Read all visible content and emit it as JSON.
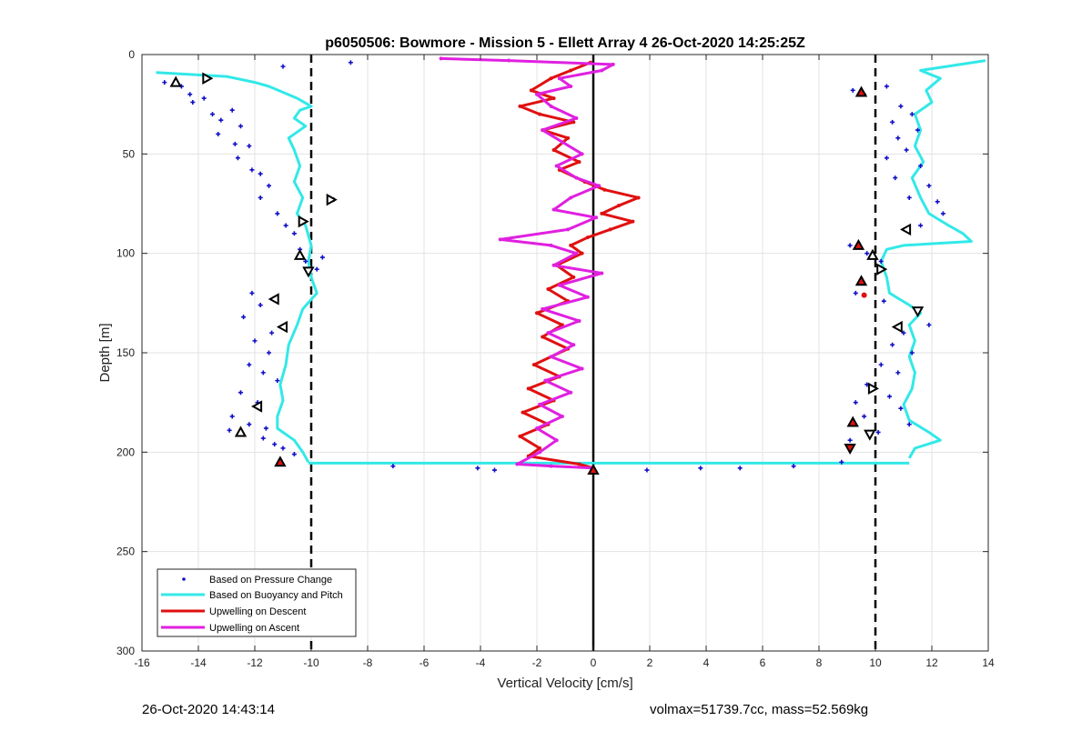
{
  "chart_data": {
    "type": "line",
    "title": "p6050506: Bowmore - Mission 5 - Ellett Array 4 26-Oct-2020 14:25:25Z",
    "xlabel": "Vertical Velocity [cm/s]",
    "ylabel": "Depth [m]",
    "xlim": [
      -16,
      14
    ],
    "ylim": [
      0,
      300
    ],
    "y_reversed": true,
    "xticks": [
      "-16",
      "-14",
      "-12",
      "-10",
      "-8",
      "-6",
      "-4",
      "-2",
      "0",
      "2",
      "4",
      "6",
      "8",
      "10",
      "12",
      "14"
    ],
    "yticks": [
      "0",
      "50",
      "100",
      "150",
      "200",
      "250",
      "300"
    ],
    "grid": true,
    "legend_position": "bottom-left",
    "reference_lines": [
      {
        "x": -10,
        "style": "dashed",
        "color": "#000000"
      },
      {
        "x": 10,
        "style": "dashed",
        "color": "#000000"
      },
      {
        "x": 0,
        "style": "solid",
        "color": "#000000"
      }
    ],
    "series": [
      {
        "name": "Based on Pressure Change",
        "style": "markers",
        "color": "#1010c8",
        "points": [
          [
            -15.2,
            14
          ],
          [
            -14.6,
            16
          ],
          [
            -14.3,
            20
          ],
          [
            -14.2,
            24
          ],
          [
            -13.8,
            22
          ],
          [
            -13.5,
            30
          ],
          [
            -13.2,
            33
          ],
          [
            -12.8,
            28
          ],
          [
            -12.5,
            36
          ],
          [
            -13.3,
            40
          ],
          [
            -12.7,
            45
          ],
          [
            -12.2,
            46
          ],
          [
            -12.6,
            52
          ],
          [
            -12.1,
            58
          ],
          [
            -11.8,
            60
          ],
          [
            -11.5,
            66
          ],
          [
            -11.8,
            72
          ],
          [
            -11.2,
            80
          ],
          [
            -10.9,
            86
          ],
          [
            -10.6,
            90
          ],
          [
            -10.4,
            98
          ],
          [
            -10.2,
            104
          ],
          [
            -9.8,
            108
          ],
          [
            -9.6,
            102
          ],
          [
            -9.2,
            73
          ],
          [
            -8.6,
            4
          ],
          [
            -11.0,
            6
          ],
          [
            -12.1,
            120
          ],
          [
            -11.8,
            126
          ],
          [
            -12.4,
            132
          ],
          [
            -11.4,
            140
          ],
          [
            -12.0,
            144
          ],
          [
            -11.5,
            150
          ],
          [
            -12.2,
            156
          ],
          [
            -11.7,
            160
          ],
          [
            -11.2,
            164
          ],
          [
            -12.5,
            170
          ],
          [
            -11.9,
            175
          ],
          [
            -12.8,
            182
          ],
          [
            -12.2,
            186
          ],
          [
            -11.6,
            188
          ],
          [
            -12.9,
            189
          ],
          [
            -11.7,
            193
          ],
          [
            -11.3,
            196
          ],
          [
            -11.0,
            198
          ],
          [
            -10.6,
            201
          ],
          [
            -11.1,
            204
          ],
          [
            9.2,
            18
          ],
          [
            9.6,
            20
          ],
          [
            10.4,
            16
          ],
          [
            10.9,
            26
          ],
          [
            11.3,
            30
          ],
          [
            10.6,
            34
          ],
          [
            11.5,
            38
          ],
          [
            10.8,
            42
          ],
          [
            11.1,
            48
          ],
          [
            10.4,
            52
          ],
          [
            11.6,
            56
          ],
          [
            10.7,
            62
          ],
          [
            11.9,
            66
          ],
          [
            11.2,
            72
          ],
          [
            12.2,
            74
          ],
          [
            12.4,
            80
          ],
          [
            11.6,
            86
          ],
          [
            9.1,
            96
          ],
          [
            9.7,
            100
          ],
          [
            10.2,
            104
          ],
          [
            9.3,
            120
          ],
          [
            10.3,
            124
          ],
          [
            11.9,
            136
          ],
          [
            11.0,
            140
          ],
          [
            10.6,
            146
          ],
          [
            11.3,
            150
          ],
          [
            10.2,
            156
          ],
          [
            10.8,
            160
          ],
          [
            9.7,
            166
          ],
          [
            10.5,
            172
          ],
          [
            9.3,
            175
          ],
          [
            10.9,
            178
          ],
          [
            9.6,
            182
          ],
          [
            11.2,
            186
          ],
          [
            10.1,
            190
          ],
          [
            9.1,
            194
          ],
          [
            -7.1,
            207
          ],
          [
            -4.1,
            208
          ],
          [
            -3.5,
            209
          ],
          [
            1.9,
            209
          ],
          [
            3.8,
            208
          ],
          [
            5.2,
            208
          ],
          [
            7.1,
            207
          ],
          [
            8.8,
            205
          ]
        ]
      },
      {
        "name": "Based on Buoyancy and Pitch",
        "style": "line",
        "color": "#33e8e8",
        "points_left": [
          [
            -15.5,
            9
          ],
          [
            -13.0,
            11
          ],
          [
            -12.0,
            14
          ],
          [
            -11.5,
            16
          ],
          [
            -11.0,
            19
          ],
          [
            -10.5,
            22
          ],
          [
            -10.0,
            26
          ],
          [
            -10.4,
            28
          ],
          [
            -10.6,
            32
          ],
          [
            -10.2,
            36
          ],
          [
            -10.8,
            42
          ],
          [
            -10.6,
            48
          ],
          [
            -10.4,
            56
          ],
          [
            -10.6,
            64
          ],
          [
            -10.3,
            72
          ],
          [
            -10.5,
            80
          ],
          [
            -10.2,
            86
          ],
          [
            -10.0,
            96
          ],
          [
            -10.1,
            104
          ],
          [
            -10.0,
            112
          ],
          [
            -9.8,
            120
          ],
          [
            -10.3,
            128
          ],
          [
            -10.5,
            136
          ],
          [
            -10.8,
            146
          ],
          [
            -10.9,
            156
          ],
          [
            -11.1,
            166
          ],
          [
            -11.0,
            174
          ],
          [
            -11.2,
            182
          ],
          [
            -11.2,
            188
          ],
          [
            -10.6,
            194
          ],
          [
            -10.3,
            200
          ],
          [
            -10.1,
            205
          ]
        ],
        "points_right": [
          [
            13.9,
            3
          ],
          [
            11.6,
            8
          ],
          [
            12.3,
            12
          ],
          [
            11.8,
            18
          ],
          [
            12.0,
            24
          ],
          [
            11.4,
            30
          ],
          [
            11.6,
            38
          ],
          [
            11.4,
            46
          ],
          [
            11.7,
            54
          ],
          [
            11.3,
            62
          ],
          [
            11.6,
            72
          ],
          [
            11.9,
            80
          ],
          [
            12.6,
            86
          ],
          [
            13.1,
            90
          ],
          [
            13.4,
            94
          ],
          [
            11.0,
            96
          ],
          [
            10.4,
            98
          ],
          [
            10.2,
            104
          ],
          [
            10.4,
            112
          ],
          [
            10.5,
            120
          ],
          [
            11.2,
            126
          ],
          [
            11.6,
            130
          ],
          [
            11.2,
            136
          ],
          [
            11.4,
            144
          ],
          [
            11.2,
            152
          ],
          [
            11.4,
            160
          ],
          [
            11.3,
            168
          ],
          [
            11.0,
            176
          ],
          [
            11.2,
            184
          ],
          [
            11.9,
            190
          ],
          [
            12.3,
            194
          ],
          [
            11.4,
            198
          ],
          [
            11.2,
            203
          ]
        ],
        "bottom_crossing": {
          "from_x": -10.1,
          "to_x": 11.2,
          "depth": 205.5
        }
      },
      {
        "name": "Upwelling on Descent",
        "style": "line",
        "color": "#e01010",
        "points": [
          [
            -0.1,
            4
          ],
          [
            -0.8,
            8
          ],
          [
            -1.5,
            12
          ],
          [
            -2.2,
            18
          ],
          [
            -1.4,
            22
          ],
          [
            -2.6,
            26
          ],
          [
            -1.9,
            30
          ],
          [
            -0.7,
            34
          ],
          [
            -1.8,
            38
          ],
          [
            -0.9,
            42
          ],
          [
            -1.4,
            48
          ],
          [
            -0.5,
            54
          ],
          [
            -1.2,
            58
          ],
          [
            -0.3,
            64
          ],
          [
            0.4,
            68
          ],
          [
            1.6,
            72
          ],
          [
            0.9,
            76
          ],
          [
            0.3,
            80
          ],
          [
            1.4,
            84
          ],
          [
            0.6,
            88
          ],
          [
            -0.2,
            92
          ],
          [
            -0.8,
            96
          ],
          [
            -0.4,
            100
          ],
          [
            -1.3,
            106
          ],
          [
            -0.7,
            112
          ],
          [
            -1.6,
            118
          ],
          [
            -0.9,
            124
          ],
          [
            -2.0,
            130
          ],
          [
            -1.1,
            136
          ],
          [
            -1.8,
            142
          ],
          [
            -0.9,
            148
          ],
          [
            -2.1,
            156
          ],
          [
            -1.2,
            162
          ],
          [
            -2.3,
            168
          ],
          [
            -1.4,
            174
          ],
          [
            -2.5,
            180
          ],
          [
            -1.6,
            186
          ],
          [
            -2.6,
            192
          ],
          [
            -1.9,
            198
          ],
          [
            -2.3,
            202
          ],
          [
            -0.5,
            206
          ],
          [
            0,
            208
          ]
        ]
      },
      {
        "name": "Upwelling on Ascent",
        "style": "line",
        "color": "#e020e0",
        "points": [
          [
            -5.4,
            2
          ],
          [
            -3.0,
            3
          ],
          [
            0.7,
            5
          ],
          [
            0.3,
            8
          ],
          [
            -1.2,
            12
          ],
          [
            -0.8,
            16
          ],
          [
            -2.0,
            20
          ],
          [
            -1.5,
            26
          ],
          [
            -0.6,
            32
          ],
          [
            -1.8,
            38
          ],
          [
            -1.1,
            44
          ],
          [
            -0.4,
            50
          ],
          [
            -1.3,
            56
          ],
          [
            -0.6,
            62
          ],
          [
            0.2,
            66
          ],
          [
            -0.8,
            72
          ],
          [
            -1.4,
            78
          ],
          [
            0.1,
            82
          ],
          [
            -0.9,
            88
          ],
          [
            -3.3,
            93
          ],
          [
            -1.5,
            96
          ],
          [
            -0.6,
            100
          ],
          [
            -1.4,
            106
          ],
          [
            0.3,
            110
          ],
          [
            -1.2,
            116
          ],
          [
            -0.2,
            122
          ],
          [
            -1.8,
            128
          ],
          [
            -0.5,
            134
          ],
          [
            -1.6,
            140
          ],
          [
            -0.7,
            146
          ],
          [
            -1.5,
            152
          ],
          [
            -0.4,
            158
          ],
          [
            -1.7,
            164
          ],
          [
            -0.8,
            170
          ],
          [
            -1.9,
            176
          ],
          [
            -1.1,
            182
          ],
          [
            -2.0,
            188
          ],
          [
            -1.3,
            194
          ],
          [
            -1.9,
            200
          ],
          [
            -2.7,
            206
          ],
          [
            -1.5,
            207
          ],
          [
            0,
            208
          ]
        ]
      }
    ],
    "triangle_markers": [
      {
        "x": -14.8,
        "y": 14,
        "dir": "up",
        "fill": "#ffffff"
      },
      {
        "x": -13.7,
        "y": 12,
        "dir": "right",
        "fill": "#ffffff"
      },
      {
        "x": -9.3,
        "y": 73,
        "dir": "right",
        "fill": "#ffffff"
      },
      {
        "x": -10.3,
        "y": 84,
        "dir": "right",
        "fill": "#ffffff"
      },
      {
        "x": -10.4,
        "y": 101,
        "dir": "up",
        "fill": "#ffffff"
      },
      {
        "x": -10.1,
        "y": 109,
        "dir": "down",
        "fill": "#ffffff"
      },
      {
        "x": -11.3,
        "y": 123,
        "dir": "left",
        "fill": "#ffffff"
      },
      {
        "x": -11.0,
        "y": 137,
        "dir": "left",
        "fill": "#ffffff"
      },
      {
        "x": -11.9,
        "y": 177,
        "dir": "left",
        "fill": "#ffffff"
      },
      {
        "x": -12.5,
        "y": 190,
        "dir": "up",
        "fill": "#ffffff"
      },
      {
        "x": -11.1,
        "y": 205,
        "dir": "up",
        "fill": "#e01010"
      },
      {
        "x": 0.0,
        "y": 209,
        "dir": "up",
        "fill": "#e01010"
      },
      {
        "x": 9.5,
        "y": 19,
        "dir": "up",
        "fill": "#e01010"
      },
      {
        "x": 11.1,
        "y": 88,
        "dir": "left",
        "fill": "#ffffff"
      },
      {
        "x": 9.4,
        "y": 96,
        "dir": "up",
        "fill": "#e01010"
      },
      {
        "x": 9.9,
        "y": 101,
        "dir": "up",
        "fill": "#ffffff"
      },
      {
        "x": 10.2,
        "y": 108,
        "dir": "right",
        "fill": "#ffffff"
      },
      {
        "x": 9.5,
        "y": 114,
        "dir": "up",
        "fill": "#e01010"
      },
      {
        "x": 11.5,
        "y": 129,
        "dir": "down",
        "fill": "#ffffff"
      },
      {
        "x": 10.8,
        "y": 137,
        "dir": "left",
        "fill": "#ffffff"
      },
      {
        "x": 9.9,
        "y": 168,
        "dir": "right",
        "fill": "#ffffff"
      },
      {
        "x": 9.2,
        "y": 185,
        "dir": "up",
        "fill": "#e01010"
      },
      {
        "x": 9.8,
        "y": 191,
        "dir": "down",
        "fill": "#ffffff"
      },
      {
        "x": 9.1,
        "y": 198,
        "dir": "down",
        "fill": "#e01010"
      }
    ],
    "red_dots": [
      {
        "x": 9.6,
        "y": 121
      }
    ]
  },
  "footer": {
    "timestamp": "26-Oct-2020 14:43:14",
    "specs": "volmax=51739.7cc, mass=52.569kg"
  }
}
